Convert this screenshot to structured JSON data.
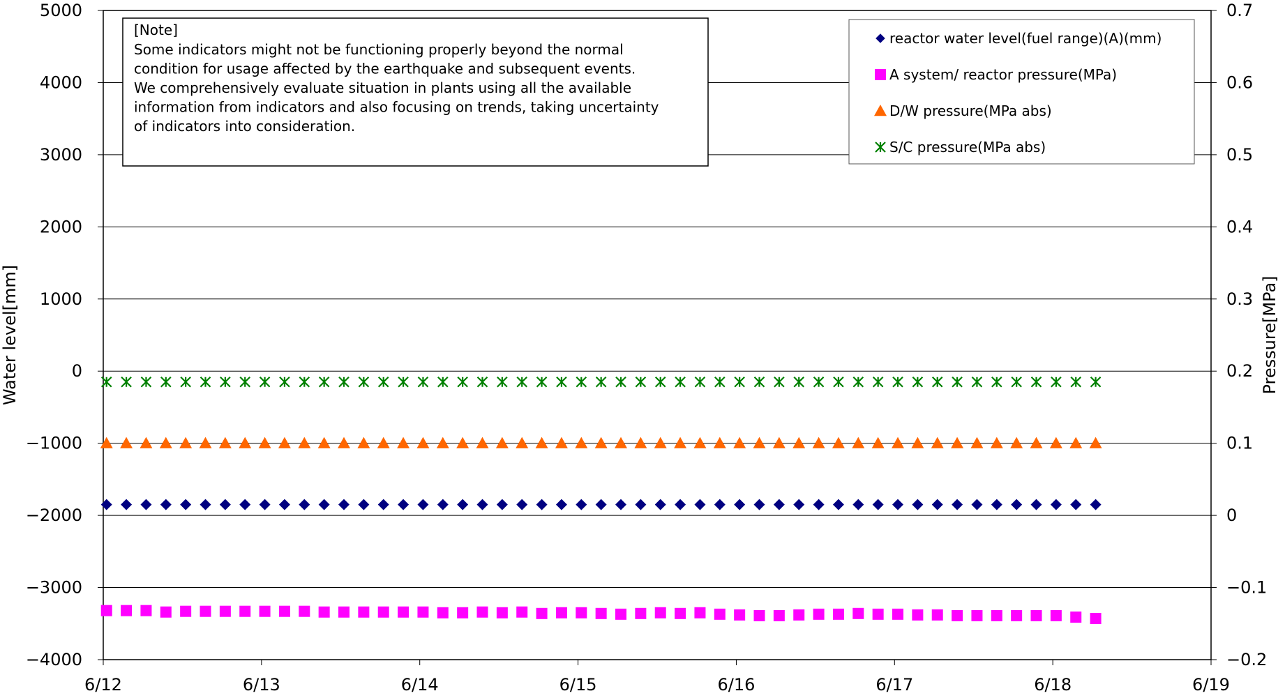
{
  "chart_data": {
    "type": "scatter",
    "x_axis": {
      "min": "6/12",
      "max": "6/19",
      "tick_labels": [
        "6/12",
        "6/13",
        "6/14",
        "6/15",
        "6/16",
        "6/17",
        "6/18",
        "6/19"
      ]
    },
    "y_left": {
      "label": "Water level[mm]",
      "min": -4000,
      "max": 5000,
      "ticks": [
        5000,
        4000,
        3000,
        2000,
        1000,
        0,
        -1000,
        -2000,
        -3000,
        -4000
      ],
      "tick_labels": [
        "5000",
        "4000",
        "3000",
        "2000",
        "1000",
        "0",
        "−1000",
        "−2000",
        "−3000",
        "−4000"
      ]
    },
    "y_right": {
      "label": "Pressure[MPa]",
      "min": -0.2,
      "max": 0.7,
      "ticks": [
        0.7,
        0.6,
        0.5,
        0.4,
        0.3,
        0.2,
        0.1,
        0,
        -0.1,
        -0.2
      ],
      "tick_labels": [
        "0.7",
        "0.6",
        "0.5",
        "0.4",
        "0.3",
        "0.2",
        "0.1",
        "0",
        "−0.1",
        "−0.2"
      ]
    },
    "grid": "horizontal",
    "note": {
      "heading": "[Note]",
      "lines": [
        "Some indicators might not be functioning properly beyond the normal",
        "condition for usage affected by the earthquake and subsequent events.",
        "We comprehensively evaluate situation in plants using all the available",
        "information from indicators and also focusing on trends, taking uncertainty",
        "of indicators into consideration."
      ]
    },
    "legend_position": "top-right",
    "series": [
      {
        "name": "reactor water level(fuel range)(A)(mm)",
        "axis": "left",
        "marker": "diamond",
        "color": "#000080",
        "x": [
          "6/12 00:30",
          "6/12 03:30",
          "6/12 06:30",
          "6/12 09:30",
          "6/12 12:30",
          "6/12 15:30",
          "6/12 18:30",
          "6/12 21:30",
          "6/13 00:30",
          "6/13 03:30",
          "6/13 06:30",
          "6/13 09:30",
          "6/13 12:30",
          "6/13 15:30",
          "6/13 18:30",
          "6/13 21:30",
          "6/14 00:30",
          "6/14 03:30",
          "6/14 06:30",
          "6/14 09:30",
          "6/14 12:30",
          "6/14 15:30",
          "6/14 18:30",
          "6/14 21:30",
          "6/15 00:30",
          "6/15 03:30",
          "6/15 06:30",
          "6/15 09:30",
          "6/15 12:30",
          "6/15 15:30",
          "6/15 18:30",
          "6/15 21:30",
          "6/16 00:30",
          "6/16 03:30",
          "6/16 06:30",
          "6/16 09:30",
          "6/16 12:30",
          "6/16 15:30",
          "6/16 18:30",
          "6/16 21:30",
          "6/17 00:30",
          "6/17 03:30",
          "6/17 06:30",
          "6/17 09:30",
          "6/17 12:30",
          "6/17 15:30",
          "6/17 18:30",
          "6/17 21:30",
          "6/18 00:30",
          "6/18 03:30",
          "6/18 06:30"
        ],
        "values": [
          -1850,
          -1850,
          -1850,
          -1850,
          -1850,
          -1850,
          -1850,
          -1850,
          -1850,
          -1850,
          -1850,
          -1850,
          -1850,
          -1850,
          -1850,
          -1850,
          -1850,
          -1850,
          -1850,
          -1850,
          -1850,
          -1850,
          -1850,
          -1850,
          -1850,
          -1850,
          -1850,
          -1850,
          -1850,
          -1850,
          -1850,
          -1850,
          -1850,
          -1850,
          -1850,
          -1850,
          -1850,
          -1850,
          -1850,
          -1850,
          -1850,
          -1850,
          -1850,
          -1850,
          -1850,
          -1850,
          -1850,
          -1850,
          -1850,
          -1850,
          -1850
        ]
      },
      {
        "name": "A system/ reactor pressure(MPa)",
        "axis": "right",
        "marker": "square",
        "color": "#ff00ff",
        "x": [
          "6/12 00:30",
          "6/12 03:30",
          "6/12 06:30",
          "6/12 09:30",
          "6/12 12:30",
          "6/12 15:30",
          "6/12 18:30",
          "6/12 21:30",
          "6/13 00:30",
          "6/13 03:30",
          "6/13 06:30",
          "6/13 09:30",
          "6/13 12:30",
          "6/13 15:30",
          "6/13 18:30",
          "6/13 21:30",
          "6/14 00:30",
          "6/14 03:30",
          "6/14 06:30",
          "6/14 09:30",
          "6/14 12:30",
          "6/14 15:30",
          "6/14 18:30",
          "6/14 21:30",
          "6/15 00:30",
          "6/15 03:30",
          "6/15 06:30",
          "6/15 09:30",
          "6/15 12:30",
          "6/15 15:30",
          "6/15 18:30",
          "6/15 21:30",
          "6/16 00:30",
          "6/16 03:30",
          "6/16 06:30",
          "6/16 09:30",
          "6/16 12:30",
          "6/16 15:30",
          "6/16 18:30",
          "6/16 21:30",
          "6/17 00:30",
          "6/17 03:30",
          "6/17 06:30",
          "6/17 09:30",
          "6/17 12:30",
          "6/17 15:30",
          "6/17 18:30",
          "6/17 21:30",
          "6/18 00:30",
          "6/18 03:30",
          "6/18 06:30"
        ],
        "values": [
          -0.132,
          -0.132,
          -0.132,
          -0.134,
          -0.133,
          -0.133,
          -0.133,
          -0.133,
          -0.133,
          -0.133,
          -0.133,
          -0.134,
          -0.134,
          -0.134,
          -0.134,
          -0.134,
          -0.134,
          -0.135,
          -0.135,
          -0.134,
          -0.135,
          -0.134,
          -0.136,
          -0.135,
          -0.135,
          -0.136,
          -0.137,
          -0.136,
          -0.135,
          -0.136,
          -0.135,
          -0.137,
          -0.138,
          -0.139,
          -0.139,
          -0.138,
          -0.137,
          -0.137,
          -0.136,
          -0.137,
          -0.137,
          -0.138,
          -0.138,
          -0.139,
          -0.139,
          -0.139,
          -0.139,
          -0.139,
          -0.139,
          -0.141,
          -0.143
        ]
      },
      {
        "name": "D/W pressure(MPa abs)",
        "axis": "right",
        "marker": "triangle",
        "color": "#ff6600",
        "x": [
          "6/12 00:30",
          "6/12 03:30",
          "6/12 06:30",
          "6/12 09:30",
          "6/12 12:30",
          "6/12 15:30",
          "6/12 18:30",
          "6/12 21:30",
          "6/13 00:30",
          "6/13 03:30",
          "6/13 06:30",
          "6/13 09:30",
          "6/13 12:30",
          "6/13 15:30",
          "6/13 18:30",
          "6/13 21:30",
          "6/14 00:30",
          "6/14 03:30",
          "6/14 06:30",
          "6/14 09:30",
          "6/14 12:30",
          "6/14 15:30",
          "6/14 18:30",
          "6/14 21:30",
          "6/15 00:30",
          "6/15 03:30",
          "6/15 06:30",
          "6/15 09:30",
          "6/15 12:30",
          "6/15 15:30",
          "6/15 18:30",
          "6/15 21:30",
          "6/16 00:30",
          "6/16 03:30",
          "6/16 06:30",
          "6/16 09:30",
          "6/16 12:30",
          "6/16 15:30",
          "6/16 18:30",
          "6/16 21:30",
          "6/17 00:30",
          "6/17 03:30",
          "6/17 06:30",
          "6/17 09:30",
          "6/17 12:30",
          "6/17 15:30",
          "6/17 18:30",
          "6/17 21:30",
          "6/18 00:30",
          "6/18 03:30",
          "6/18 06:30"
        ],
        "values": [
          0.1,
          0.1,
          0.1,
          0.1,
          0.1,
          0.1,
          0.1,
          0.1,
          0.1,
          0.1,
          0.1,
          0.1,
          0.1,
          0.1,
          0.1,
          0.1,
          0.1,
          0.1,
          0.1,
          0.1,
          0.1,
          0.1,
          0.1,
          0.1,
          0.1,
          0.1,
          0.1,
          0.1,
          0.1,
          0.1,
          0.1,
          0.1,
          0.1,
          0.1,
          0.1,
          0.1,
          0.1,
          0.1,
          0.1,
          0.1,
          0.1,
          0.1,
          0.1,
          0.1,
          0.1,
          0.1,
          0.1,
          0.1,
          0.1,
          0.1,
          0.1
        ]
      },
      {
        "name": "S/C pressure(MPa abs)",
        "axis": "right",
        "marker": "asterisk",
        "color": "#008000",
        "x": [
          "6/12 00:30",
          "6/12 03:30",
          "6/12 06:30",
          "6/12 09:30",
          "6/12 12:30",
          "6/12 15:30",
          "6/12 18:30",
          "6/12 21:30",
          "6/13 00:30",
          "6/13 03:30",
          "6/13 06:30",
          "6/13 09:30",
          "6/13 12:30",
          "6/13 15:30",
          "6/13 18:30",
          "6/13 21:30",
          "6/14 00:30",
          "6/14 03:30",
          "6/14 06:30",
          "6/14 09:30",
          "6/14 12:30",
          "6/14 15:30",
          "6/14 18:30",
          "6/14 21:30",
          "6/15 00:30",
          "6/15 03:30",
          "6/15 06:30",
          "6/15 09:30",
          "6/15 12:30",
          "6/15 15:30",
          "6/15 18:30",
          "6/15 21:30",
          "6/16 00:30",
          "6/16 03:30",
          "6/16 06:30",
          "6/16 09:30",
          "6/16 12:30",
          "6/16 15:30",
          "6/16 18:30",
          "6/16 21:30",
          "6/17 00:30",
          "6/17 03:30",
          "6/17 06:30",
          "6/17 09:30",
          "6/17 12:30",
          "6/17 15:30",
          "6/17 18:30",
          "6/17 21:30",
          "6/18 00:30",
          "6/18 03:30",
          "6/18 06:30"
        ],
        "values": [
          0.185,
          0.185,
          0.185,
          0.185,
          0.185,
          0.185,
          0.185,
          0.185,
          0.185,
          0.185,
          0.185,
          0.185,
          0.185,
          0.185,
          0.185,
          0.185,
          0.185,
          0.185,
          0.185,
          0.185,
          0.185,
          0.185,
          0.185,
          0.185,
          0.185,
          0.185,
          0.185,
          0.185,
          0.185,
          0.185,
          0.185,
          0.185,
          0.185,
          0.185,
          0.185,
          0.185,
          0.185,
          0.185,
          0.185,
          0.185,
          0.185,
          0.185,
          0.185,
          0.185,
          0.185,
          0.185,
          0.185,
          0.185,
          0.185,
          0.185,
          0.185
        ]
      }
    ]
  }
}
